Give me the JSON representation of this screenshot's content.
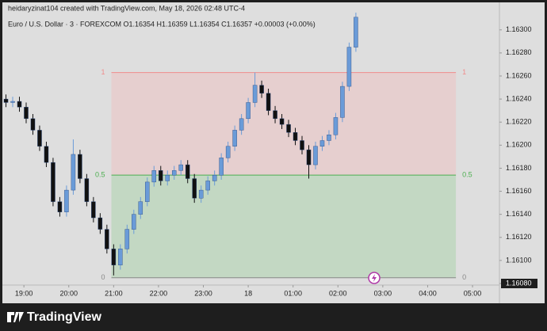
{
  "chart_data": {
    "type": "candlestick",
    "credit": "heidaryzinat104 created with TradingView.com, May 18, 2026 02:48 UTC-4",
    "title": "Euro / U.S. Dollar · 3 · FOREXCOM  O1.16354  H1.16359  L1.16354  C1.16357  +0.00003 (+0.00%)",
    "brand": "TradingView",
    "up_color": "#6a9bd8",
    "down_color": "#111111",
    "grid": false,
    "xlim": [
      -0.48,
      10.6
    ],
    "ylim": [
      1.1608,
      1.16317
    ],
    "xticks": [
      {
        "value": 0,
        "label": "19:00"
      },
      {
        "value": 1,
        "label": "20:00"
      },
      {
        "value": 2,
        "label": "21:00"
      },
      {
        "value": 3,
        "label": "22:00"
      },
      {
        "value": 4,
        "label": "23:00"
      },
      {
        "value": 5,
        "label": "18"
      },
      {
        "value": 6,
        "label": "01:00"
      },
      {
        "value": 7,
        "label": "02:00"
      },
      {
        "value": 8,
        "label": "03:00"
      },
      {
        "value": 9,
        "label": "04:00"
      },
      {
        "value": 10,
        "label": "05:00"
      }
    ],
    "yticks": [
      {
        "value": 1.163,
        "label": "1.16300"
      },
      {
        "value": 1.1628,
        "label": "1.16280"
      },
      {
        "value": 1.1626,
        "label": "1.16260"
      },
      {
        "value": 1.1624,
        "label": "1.16240"
      },
      {
        "value": 1.1622,
        "label": "1.16220"
      },
      {
        "value": 1.162,
        "label": "1.16200"
      },
      {
        "value": 1.1618,
        "label": "1.16180"
      },
      {
        "value": 1.1616,
        "label": "1.16160"
      },
      {
        "value": 1.1614,
        "label": "1.16140"
      },
      {
        "value": 1.1612,
        "label": "1.16120"
      },
      {
        "value": 1.161,
        "label": "1.16100"
      },
      {
        "value": 1.1608,
        "label": "1.16080"
      }
    ],
    "x": [
      -0.4,
      -0.25,
      -0.1,
      0.05,
      0.2,
      0.35,
      0.5,
      0.65,
      0.8,
      0.95,
      1.1,
      1.25,
      1.4,
      1.55,
      1.7,
      1.85,
      2,
      2.15,
      2.3,
      2.45,
      2.6,
      2.75,
      2.9,
      3.05,
      3.2,
      3.35,
      3.5,
      3.65,
      3.8,
      3.95,
      4.1,
      4.25,
      4.4,
      4.55,
      4.7,
      4.85,
      5,
      5.15,
      5.3,
      5.45,
      5.6,
      5.75,
      5.9,
      6.05,
      6.2,
      6.35,
      6.5,
      6.65,
      6.8,
      6.95,
      7.1,
      7.25,
      7.4
    ],
    "open": [
      1.1624,
      1.16237,
      1.16238,
      1.16233,
      1.16223,
      1.16213,
      1.16199,
      1.16185,
      1.16151,
      1.16142,
      1.16161,
      1.16192,
      1.16171,
      1.16151,
      1.16137,
      1.16127,
      1.1611,
      1.16096,
      1.1611,
      1.16127,
      1.1614,
      1.16151,
      1.16168,
      1.16178,
      1.16169,
      1.16174,
      1.16178,
      1.16183,
      1.16171,
      1.16154,
      1.16161,
      1.16169,
      1.16174,
      1.16189,
      1.16199,
      1.16213,
      1.16223,
      1.16237,
      1.16252,
      1.16245,
      1.1623,
      1.16223,
      1.16218,
      1.16211,
      1.16204,
      1.16196,
      1.16183,
      1.16199,
      1.16204,
      1.16209,
      1.16224,
      1.16251,
      1.16285
    ],
    "high": [
      1.16244,
      1.16242,
      1.16242,
      1.16237,
      1.16227,
      1.16217,
      1.16203,
      1.16189,
      1.16155,
      1.16165,
      1.16205,
      1.16196,
      1.16175,
      1.16155,
      1.16141,
      1.16131,
      1.16114,
      1.16114,
      1.16131,
      1.16144,
      1.16155,
      1.16172,
      1.16182,
      1.16182,
      1.16178,
      1.16182,
      1.16187,
      1.16187,
      1.16175,
      1.16165,
      1.16173,
      1.16178,
      1.16193,
      1.16203,
      1.16217,
      1.16227,
      1.16241,
      1.16263,
      1.16256,
      1.16249,
      1.16234,
      1.16227,
      1.16222,
      1.16215,
      1.16208,
      1.162,
      1.16203,
      1.16208,
      1.16213,
      1.16228,
      1.16255,
      1.16289,
      1.16315
    ],
    "low": [
      1.16233,
      1.16233,
      1.16229,
      1.16219,
      1.16209,
      1.16195,
      1.16181,
      1.16147,
      1.16138,
      1.16138,
      1.16157,
      1.16167,
      1.16147,
      1.16133,
      1.16123,
      1.16106,
      1.16087,
      1.16092,
      1.16106,
      1.16123,
      1.16136,
      1.16147,
      1.16164,
      1.16165,
      1.16165,
      1.1617,
      1.16174,
      1.16167,
      1.1615,
      1.1615,
      1.16157,
      1.16165,
      1.1617,
      1.16185,
      1.16195,
      1.16209,
      1.16219,
      1.16233,
      1.16241,
      1.16226,
      1.16219,
      1.16214,
      1.16207,
      1.162,
      1.16192,
      1.16171,
      1.16179,
      1.16195,
      1.162,
      1.16205,
      1.1622,
      1.16247,
      1.16281
    ],
    "close": [
      1.16237,
      1.16238,
      1.16233,
      1.16223,
      1.16213,
      1.16199,
      1.16185,
      1.16151,
      1.16142,
      1.16161,
      1.16192,
      1.16171,
      1.16151,
      1.16137,
      1.16127,
      1.1611,
      1.16096,
      1.1611,
      1.16127,
      1.1614,
      1.16151,
      1.16168,
      1.16178,
      1.16169,
      1.16174,
      1.16178,
      1.16183,
      1.16171,
      1.16154,
      1.16161,
      1.16169,
      1.16174,
      1.16189,
      1.16199,
      1.16213,
      1.16223,
      1.16237,
      1.16252,
      1.16245,
      1.1623,
      1.16223,
      1.16218,
      1.16211,
      1.16204,
      1.16196,
      1.16183,
      1.16199,
      1.16204,
      1.16209,
      1.16224,
      1.16251,
      1.16285,
      1.16311
    ],
    "fib": {
      "x_start": 1.95,
      "x_end": 9.63,
      "levels": [
        {
          "value": 1.16263,
          "label": "1",
          "color": "#f08c8c"
        },
        {
          "value": 1.16174,
          "label": "0.5",
          "color": "#4caf50"
        },
        {
          "value": 1.16085,
          "label": "0",
          "color": "#888888"
        }
      ],
      "fills": [
        "#e6cfcf",
        "#c3d8c3"
      ]
    }
  }
}
